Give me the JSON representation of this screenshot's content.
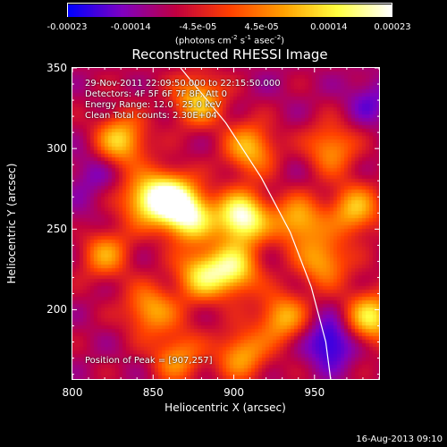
{
  "colorbar": {
    "labels": [
      "-0.00023",
      "-0.00014",
      "-4.5e-05",
      "4.5e-05",
      "0.00014",
      "0.00023"
    ],
    "values": [
      -0.00023,
      -0.00014,
      -4.5e-05,
      4.5e-05,
      0.00014,
      0.00023
    ],
    "range": [
      -0.00023,
      0.00023
    ],
    "unit": {
      "pre": "(photons cm",
      "exp1": "-2",
      "mid1": " s",
      "exp2": "-1",
      "mid2": " asec",
      "exp3": "-2",
      "post": ")"
    },
    "colors": [
      "#0000ff",
      "#8000c0",
      "#c00040",
      "#ff4000",
      "#ffa000",
      "#ffff40",
      "#ffffff"
    ]
  },
  "title": "Reconstructed RHESSI Image",
  "annotations": {
    "time": "29-Nov-2011 22:09:50.000 to 22:15:50.000",
    "detectors": "Detectors: 4F 5F 6F 7F 8F, Att 0",
    "energy": "Energy Range: 12.0 - 25.0 keV",
    "clean": "Clean     Total counts: 2.30E+04",
    "peak": "Position of Peak = [907,257]"
  },
  "chart_data": {
    "type": "heatmap",
    "title": "Reconstructed RHESSI Image",
    "xlabel": "Heliocentric X (arcsec)",
    "ylabel": "Heliocentric Y (arcsec)",
    "xlim": [
      800,
      990
    ],
    "ylim": [
      157,
      350
    ],
    "xticks": [
      800,
      850,
      900,
      950
    ],
    "xtick_labels": [
      "800",
      "850",
      "900",
      "950"
    ],
    "yticks": [
      200,
      250,
      300,
      350
    ],
    "ytick_labels": [
      "200",
      "250",
      "300",
      "350"
    ],
    "peak": [
      907,
      257
    ],
    "solar_limb": [
      [
        867,
        350
      ],
      [
        895,
        316
      ],
      [
        917,
        282
      ],
      [
        935,
        248
      ],
      [
        948,
        214
      ],
      [
        957,
        180
      ],
      [
        960,
        157
      ]
    ],
    "value_range": [
      -0.00023,
      0.00023
    ],
    "hot_spots": [
      {
        "x": 830,
        "y": 305,
        "v": 0.00012
      },
      {
        "x": 845,
        "y": 268,
        "v": 0.0001
      },
      {
        "x": 860,
        "y": 270,
        "v": 0.00016
      },
      {
        "x": 872,
        "y": 258,
        "v": 0.00018
      },
      {
        "x": 880,
        "y": 222,
        "v": 0.00012
      },
      {
        "x": 905,
        "y": 257,
        "v": 0.00023
      },
      {
        "x": 910,
        "y": 300,
        "v": 0.0001
      },
      {
        "x": 900,
        "y": 225,
        "v": 0.00014
      },
      {
        "x": 940,
        "y": 255,
        "v": 0.0001
      },
      {
        "x": 955,
        "y": 230,
        "v": 8e-05
      },
      {
        "x": 975,
        "y": 262,
        "v": 0.0001
      },
      {
        "x": 985,
        "y": 195,
        "v": 0.00014
      },
      {
        "x": 930,
        "y": 195,
        "v": 9e-05
      },
      {
        "x": 848,
        "y": 200,
        "v": 8e-05
      },
      {
        "x": 820,
        "y": 235,
        "v": 7e-05
      },
      {
        "x": 878,
        "y": 330,
        "v": 0.00011
      },
      {
        "x": 960,
        "y": 300,
        "v": 7e-05
      },
      {
        "x": 865,
        "y": 170,
        "v": 6e-05
      },
      {
        "x": 905,
        "y": 172,
        "v": 8e-05
      }
    ],
    "cold_spots": [
      {
        "x": 812,
        "y": 285,
        "v": -0.00015
      },
      {
        "x": 805,
        "y": 250,
        "v": -0.00012
      },
      {
        "x": 960,
        "y": 180,
        "v": -0.00023
      },
      {
        "x": 985,
        "y": 330,
        "v": -0.00016
      },
      {
        "x": 840,
        "y": 345,
        "v": -8e-05
      },
      {
        "x": 925,
        "y": 340,
        "v": -0.0001
      },
      {
        "x": 870,
        "y": 195,
        "v": -7e-05
      },
      {
        "x": 945,
        "y": 290,
        "v": -0.0001
      },
      {
        "x": 826,
        "y": 170,
        "v": -9e-05
      },
      {
        "x": 975,
        "y": 225,
        "v": -8e-05
      }
    ]
  },
  "timestamp": "16-Aug-2013 09:10"
}
